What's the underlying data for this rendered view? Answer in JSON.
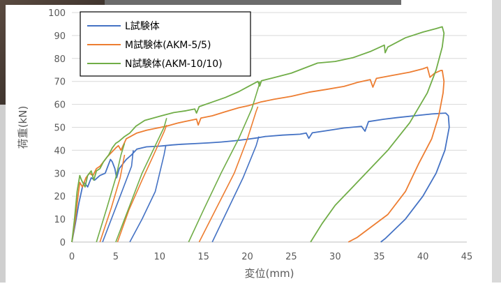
{
  "chart_data": {
    "type": "line",
    "title": "",
    "xlabel": "変位(mm)",
    "ylabel": "荷重(kN)",
    "xlim": [
      0,
      45
    ],
    "ylim": [
      0,
      100
    ],
    "xticks": [
      "0",
      "5",
      "10",
      "15",
      "20",
      "25",
      "30",
      "35",
      "40",
      "45"
    ],
    "yticks": [
      "0",
      "10",
      "20",
      "30",
      "40",
      "50",
      "60",
      "70",
      "80",
      "90",
      "100"
    ],
    "grid": "horizontal",
    "legend_position": "top-left",
    "series": [
      {
        "name": "L試験体",
        "color": "#4472C4",
        "points": [
          [
            0,
            0
          ],
          [
            0.4,
            8
          ],
          [
            0.8,
            17
          ],
          [
            1.2,
            24
          ],
          [
            1.4,
            26
          ],
          [
            1.8,
            24
          ],
          [
            2.2,
            28
          ],
          [
            2.6,
            27
          ],
          [
            3.2,
            29
          ],
          [
            3.8,
            30
          ],
          [
            4.2,
            34
          ],
          [
            4.4,
            36
          ],
          [
            4.6,
            35
          ],
          [
            4.9,
            32
          ],
          [
            5.1,
            28
          ],
          [
            5.4,
            32
          ],
          [
            5.8,
            34
          ],
          [
            6.2,
            36
          ],
          [
            6.8,
            38
          ],
          [
            7.4,
            40.5
          ],
          [
            8.5,
            41.5
          ],
          [
            10,
            41.8
          ],
          [
            10.6,
            42
          ],
          [
            11.4,
            42.3
          ],
          [
            12.5,
            42.6
          ],
          [
            14,
            42.9
          ],
          [
            15.5,
            43.2
          ],
          [
            17,
            43.6
          ],
          [
            18.5,
            44.1
          ],
          [
            20,
            44.8
          ],
          [
            21.3,
            45.5
          ],
          [
            22,
            46
          ],
          [
            24,
            46.6
          ],
          [
            26,
            47
          ],
          [
            26.7,
            47.5
          ],
          [
            27,
            45.2
          ],
          [
            27.4,
            47.6
          ],
          [
            29,
            48.5
          ],
          [
            31,
            49.7
          ],
          [
            33,
            50.4
          ],
          [
            33.4,
            48.3
          ],
          [
            33.8,
            52.5
          ],
          [
            35.5,
            53.5
          ],
          [
            37,
            54.2
          ],
          [
            39,
            55
          ],
          [
            41,
            55.8
          ],
          [
            42.6,
            56.2
          ],
          [
            42.9,
            55
          ],
          [
            43,
            50
          ],
          [
            42.5,
            40
          ],
          [
            41.5,
            30
          ],
          [
            40,
            20
          ],
          [
            38,
            10
          ],
          [
            35.7,
            1.5
          ],
          [
            35.2,
            0
          ]
        ],
        "loops": [
          [
            [
              3.5,
              0
            ],
            [
              5.5,
              20
            ],
            [
              6.8,
              33
            ],
            [
              7,
              40
            ]
          ],
          [
            [
              6.6,
              0
            ],
            [
              8,
              10
            ],
            [
              9.5,
              22
            ],
            [
              10.5,
              38
            ],
            [
              10.7,
              42
            ]
          ],
          [
            [
              16,
              0
            ],
            [
              17.5,
              12
            ],
            [
              19.5,
              28
            ],
            [
              21,
              42
            ],
            [
              21.3,
              46
            ]
          ]
        ]
      },
      {
        "name": "M試験体(AKM-5/5)",
        "color": "#ED7D31",
        "points": [
          [
            0,
            0
          ],
          [
            0.4,
            10
          ],
          [
            0.7,
            20
          ],
          [
            0.9,
            26
          ],
          [
            1.2,
            24
          ],
          [
            1.6,
            28
          ],
          [
            2.0,
            30
          ],
          [
            2.4,
            29
          ],
          [
            2.8,
            32
          ],
          [
            3.2,
            33
          ],
          [
            3.6,
            35
          ],
          [
            4.0,
            37
          ],
          [
            4.5,
            39
          ],
          [
            5.0,
            41
          ],
          [
            5.3,
            42
          ],
          [
            5.6,
            40
          ],
          [
            6.2,
            45
          ],
          [
            7.4,
            47.5
          ],
          [
            8.5,
            48.7
          ],
          [
            9.5,
            49.5
          ],
          [
            10.8,
            50.5
          ],
          [
            12,
            51.8
          ],
          [
            13,
            52.6
          ],
          [
            14.2,
            53.6
          ],
          [
            14.4,
            51
          ],
          [
            14.7,
            54
          ],
          [
            16,
            55
          ],
          [
            17.5,
            56.8
          ],
          [
            19,
            58.5
          ],
          [
            20.2,
            59.5
          ],
          [
            21.5,
            61
          ],
          [
            23,
            62.2
          ],
          [
            25,
            63.5
          ],
          [
            27,
            65.3
          ],
          [
            29,
            66.5
          ],
          [
            31,
            67.8
          ],
          [
            32.5,
            69.5
          ],
          [
            34,
            70.8
          ],
          [
            34.3,
            67.5
          ],
          [
            34.7,
            71.3
          ],
          [
            36.5,
            72.6
          ],
          [
            38.5,
            74
          ],
          [
            40,
            75.5
          ],
          [
            40.5,
            76.2
          ],
          [
            40.8,
            71.8
          ],
          [
            41.3,
            73.5
          ],
          [
            42,
            74.7
          ],
          [
            42.2,
            74.8
          ],
          [
            42.4,
            70
          ],
          [
            42.3,
            65
          ],
          [
            41.8,
            55
          ],
          [
            41,
            45
          ],
          [
            39.5,
            34
          ],
          [
            38,
            22
          ],
          [
            36,
            12
          ],
          [
            32.5,
            2
          ],
          [
            31.5,
            0
          ]
        ],
        "loops": [
          [
            [
              3.2,
              0
            ],
            [
              4.5,
              15
            ],
            [
              5.5,
              28
            ],
            [
              6.0,
              38
            ]
          ],
          [
            [
              5.2,
              0
            ],
            [
              6.5,
              14
            ],
            [
              8.0,
              27
            ],
            [
              9.2,
              37
            ],
            [
              10.5,
              48
            ],
            [
              10.8,
              51
            ]
          ],
          [
            [
              14.5,
              0
            ],
            [
              16.5,
              15
            ],
            [
              18.5,
              30
            ],
            [
              20,
              45
            ],
            [
              21,
              57
            ],
            [
              21.2,
              59
            ]
          ]
        ]
      },
      {
        "name": "N試験体(AKM-10/10)",
        "color": "#70AD47",
        "points": [
          [
            0,
            0
          ],
          [
            0.3,
            10
          ],
          [
            0.6,
            22
          ],
          [
            0.9,
            29
          ],
          [
            1.1,
            27
          ],
          [
            1.5,
            24
          ],
          [
            1.8,
            29
          ],
          [
            2.2,
            31
          ],
          [
            2.5,
            27
          ],
          [
            2.8,
            31
          ],
          [
            3.2,
            32
          ],
          [
            3.6,
            35
          ],
          [
            4.2,
            38
          ],
          [
            4.6,
            41
          ],
          [
            5.0,
            43
          ],
          [
            5.4,
            44
          ],
          [
            6.0,
            46
          ],
          [
            6.6,
            47.5
          ],
          [
            7.3,
            50.5
          ],
          [
            8.3,
            53
          ],
          [
            10.2,
            55
          ],
          [
            11.6,
            56.4
          ],
          [
            13,
            57.2
          ],
          [
            14,
            58
          ],
          [
            14.2,
            56.2
          ],
          [
            14.5,
            59
          ],
          [
            16,
            61
          ],
          [
            17.5,
            63
          ],
          [
            19,
            65.5
          ],
          [
            20.2,
            68
          ],
          [
            21.2,
            70
          ],
          [
            21.4,
            68
          ],
          [
            21.6,
            70.3
          ],
          [
            23,
            71.6
          ],
          [
            25,
            73.6
          ],
          [
            26.5,
            75.8
          ],
          [
            28,
            78
          ],
          [
            30,
            78.7
          ],
          [
            32,
            80.3
          ],
          [
            34,
            83
          ],
          [
            35.6,
            85.8
          ],
          [
            35.7,
            82.5
          ],
          [
            36,
            85
          ],
          [
            38,
            89
          ],
          [
            40,
            91.5
          ],
          [
            41.5,
            93
          ],
          [
            42.2,
            93.8
          ],
          [
            42.4,
            91
          ],
          [
            42.2,
            85
          ],
          [
            41.5,
            75
          ],
          [
            40.5,
            65
          ],
          [
            38.5,
            52
          ],
          [
            36,
            40
          ],
          [
            33,
            28
          ],
          [
            30,
            16
          ],
          [
            28.5,
            8
          ],
          [
            27.2,
            0
          ]
        ],
        "loops": [
          [
            [
              2.8,
              0
            ],
            [
              4.0,
              15
            ],
            [
              5.0,
              28
            ],
            [
              5.6,
              38
            ],
            [
              6.0,
              43
            ]
          ],
          [
            [
              5.0,
              0
            ],
            [
              6.5,
              15
            ],
            [
              8.0,
              30
            ],
            [
              9.5,
              42
            ],
            [
              10.5,
              50
            ],
            [
              10.8,
              54
            ]
          ],
          [
            [
              13.3,
              0
            ],
            [
              15,
              14
            ],
            [
              17,
              30
            ],
            [
              19,
              45
            ],
            [
              20.5,
              58
            ],
            [
              21.3,
              68
            ],
            [
              21.4,
              70
            ]
          ]
        ]
      }
    ]
  }
}
